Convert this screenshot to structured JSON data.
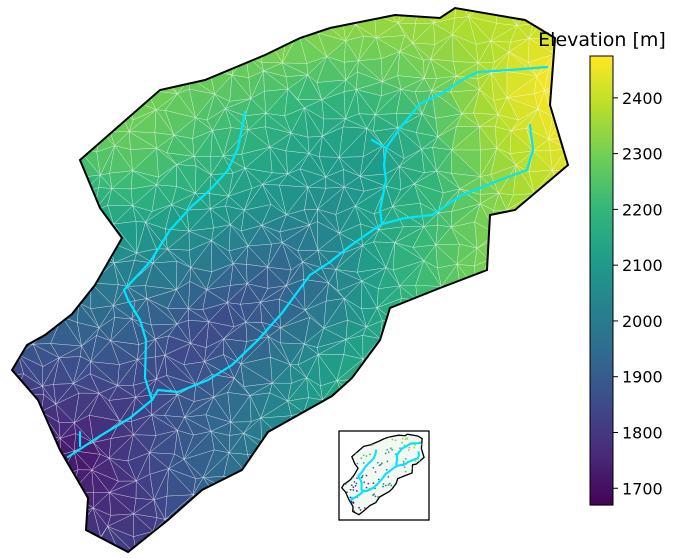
{
  "colorbar": {
    "title": "Elevation [m]",
    "min": 1670,
    "max": 2475,
    "ticks": [
      "1700",
      "1800",
      "1900",
      "2000",
      "2100",
      "2200",
      "2300",
      "2400"
    ]
  },
  "colormap": [
    "#440154",
    "#482878",
    "#3e4989",
    "#31688e",
    "#26828e",
    "#1f9e89",
    "#35b779",
    "#6ece58",
    "#b5de2b",
    "#fde725"
  ],
  "colors": {
    "stream": "#00e5ff",
    "outline": "#000000",
    "mesh": "#ffffff"
  },
  "layers": [
    "catchment-triangulation",
    "stream-network",
    "catchment-outline",
    "overview-inset"
  ]
}
